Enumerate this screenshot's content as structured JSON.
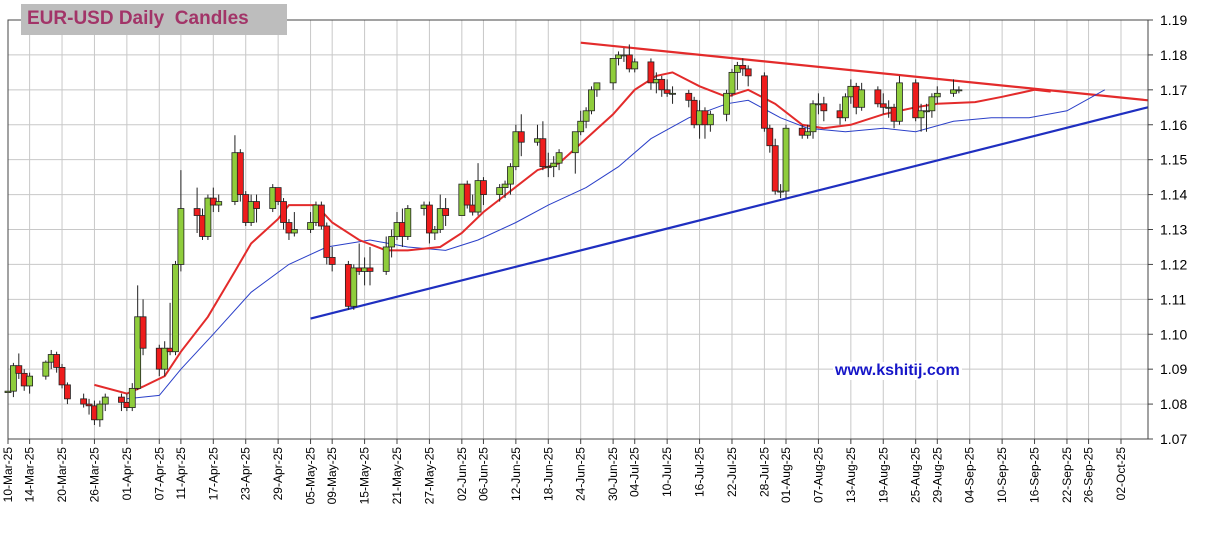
{
  "chart_data": {
    "type": "candlestick",
    "title": "EUR-USD Daily  Candles",
    "watermark": "www.kshitij.com",
    "ylim": [
      1.07,
      1.19
    ],
    "yticks": [
      "1.07",
      "1.08",
      "1.09",
      "1.10",
      "1.11",
      "1.12",
      "1.13",
      "1.14",
      "1.15",
      "1.16",
      "1.17",
      "1.18",
      "1.19"
    ],
    "grid": true,
    "axis_side": "right",
    "x_start": "2025-03-10",
    "x_end": "2025-10-07",
    "xticks": [
      "10-Mar-25",
      "14-Mar-25",
      "20-Mar-25",
      "26-Mar-25",
      "01-Apr-25",
      "07-Apr-25",
      "11-Apr-25",
      "17-Apr-25",
      "23-Apr-25",
      "29-Apr-25",
      "05-May-25",
      "09-May-25",
      "15-May-25",
      "21-May-25",
      "27-May-25",
      "02-Jun-25",
      "06-Jun-25",
      "12-Jun-25",
      "18-Jun-25",
      "24-Jun-25",
      "30-Jun-25",
      "04-Jul-25",
      "10-Jul-25",
      "16-Jul-25",
      "22-Jul-25",
      "28-Jul-25",
      "01-Aug-25",
      "07-Aug-25",
      "13-Aug-25",
      "19-Aug-25",
      "25-Aug-25",
      "29-Aug-25",
      "04-Sep-25",
      "10-Sep-25",
      "16-Sep-25",
      "22-Sep-25",
      "26-Sep-25",
      "02-Oct-25"
    ],
    "colors": {
      "up": "#8fcd3c",
      "down": "#ee1c1c",
      "ma_fast": "#e32b2b",
      "ma_slow": "#2a3fc8",
      "resistance": "#e32b2b",
      "support": "#1f2fc0"
    },
    "candles": [
      [
        "2025-03-10",
        1.0833,
        1.0844,
        1.08,
        1.0837
      ],
      [
        "2025-03-11",
        1.0837,
        1.0918,
        1.082,
        1.091
      ],
      [
        "2025-03-12",
        1.091,
        1.0945,
        1.0872,
        1.0888
      ],
      [
        "2025-03-13",
        1.0888,
        1.09,
        1.0838,
        1.0852
      ],
      [
        "2025-03-14",
        1.0852,
        1.089,
        1.083,
        1.088
      ],
      [
        "2025-03-17",
        1.088,
        1.0925,
        1.087,
        1.092
      ],
      [
        "2025-03-18",
        1.092,
        1.0955,
        1.09,
        1.0942
      ],
      [
        "2025-03-19",
        1.0942,
        1.095,
        1.089,
        1.0905
      ],
      [
        "2025-03-20",
        1.0905,
        1.0915,
        1.0845,
        1.0855
      ],
      [
        "2025-03-21",
        1.0855,
        1.0862,
        1.08,
        1.0815
      ],
      [
        "2025-03-24",
        1.0815,
        1.083,
        1.079,
        1.08
      ],
      [
        "2025-03-25",
        1.08,
        1.0815,
        1.077,
        1.0795
      ],
      [
        "2025-03-26",
        1.0795,
        1.081,
        1.074,
        1.0755
      ],
      [
        "2025-03-27",
        1.0755,
        1.081,
        1.0735,
        1.08
      ],
      [
        "2025-03-28",
        1.08,
        1.083,
        1.078,
        1.082
      ],
      [
        "2025-03-31",
        1.082,
        1.083,
        1.078,
        1.0805
      ],
      [
        "2025-04-01",
        1.0805,
        1.083,
        1.078,
        1.079
      ],
      [
        "2025-04-02",
        1.079,
        1.086,
        1.078,
        1.0845
      ],
      [
        "2025-04-03",
        1.0845,
        1.114,
        1.084,
        1.105
      ],
      [
        "2025-04-04",
        1.105,
        1.11,
        1.094,
        1.096
      ],
      [
        "2025-04-07",
        1.096,
        1.097,
        1.088,
        1.09
      ],
      [
        "2025-04-08",
        1.09,
        1.098,
        1.088,
        1.096
      ],
      [
        "2025-04-09",
        1.096,
        1.109,
        1.094,
        1.095
      ],
      [
        "2025-04-10",
        1.095,
        1.121,
        1.094,
        1.12
      ],
      [
        "2025-04-11",
        1.12,
        1.147,
        1.118,
        1.136
      ],
      [
        "2025-04-14",
        1.136,
        1.142,
        1.129,
        1.134
      ],
      [
        "2025-04-15",
        1.134,
        1.136,
        1.127,
        1.128
      ],
      [
        "2025-04-16",
        1.128,
        1.14,
        1.127,
        1.139
      ],
      [
        "2025-04-17",
        1.139,
        1.142,
        1.135,
        1.137
      ],
      [
        "2025-04-18",
        1.137,
        1.14,
        1.135,
        1.138
      ],
      [
        "2025-04-21",
        1.138,
        1.157,
        1.137,
        1.152
      ],
      [
        "2025-04-22",
        1.152,
        1.153,
        1.138,
        1.14
      ],
      [
        "2025-04-23",
        1.14,
        1.141,
        1.131,
        1.132
      ],
      [
        "2025-04-24",
        1.132,
        1.14,
        1.131,
        1.138
      ],
      [
        "2025-04-25",
        1.138,
        1.14,
        1.132,
        1.136
      ],
      [
        "2025-04-28",
        1.136,
        1.143,
        1.135,
        1.142
      ],
      [
        "2025-04-29",
        1.142,
        1.142,
        1.137,
        1.138
      ],
      [
        "2025-04-30",
        1.138,
        1.139,
        1.13,
        1.132
      ],
      [
        "2025-05-01",
        1.132,
        1.133,
        1.127,
        1.129
      ],
      [
        "2025-05-02",
        1.129,
        1.135,
        1.128,
        1.13
      ],
      [
        "2025-05-05",
        1.13,
        1.135,
        1.129,
        1.132
      ],
      [
        "2025-05-06",
        1.132,
        1.138,
        1.131,
        1.137
      ],
      [
        "2025-05-07",
        1.137,
        1.138,
        1.13,
        1.131
      ],
      [
        "2025-05-08",
        1.131,
        1.132,
        1.12,
        1.122
      ],
      [
        "2025-05-09",
        1.122,
        1.125,
        1.118,
        1.12
      ],
      [
        "2025-05-12",
        1.12,
        1.121,
        1.107,
        1.108
      ],
      [
        "2025-05-13",
        1.108,
        1.12,
        1.107,
        1.119
      ],
      [
        "2025-05-14",
        1.119,
        1.126,
        1.117,
        1.118
      ],
      [
        "2025-05-15",
        1.118,
        1.122,
        1.114,
        1.119
      ],
      [
        "2025-05-16",
        1.119,
        1.125,
        1.114,
        1.118
      ],
      [
        "2025-05-19",
        1.118,
        1.128,
        1.117,
        1.125
      ],
      [
        "2025-05-20",
        1.125,
        1.13,
        1.122,
        1.128
      ],
      [
        "2025-05-21",
        1.128,
        1.135,
        1.127,
        1.132
      ],
      [
        "2025-05-22",
        1.132,
        1.136,
        1.125,
        1.128
      ],
      [
        "2025-05-23",
        1.128,
        1.137,
        1.127,
        1.136
      ],
      [
        "2025-05-26",
        1.136,
        1.138,
        1.134,
        1.137
      ],
      [
        "2025-05-27",
        1.137,
        1.138,
        1.126,
        1.129
      ],
      [
        "2025-05-28",
        1.129,
        1.131,
        1.127,
        1.13
      ],
      [
        "2025-05-29",
        1.13,
        1.14,
        1.129,
        1.136
      ],
      [
        "2025-05-30",
        1.136,
        1.139,
        1.131,
        1.134
      ],
      [
        "2025-06-02",
        1.134,
        1.143,
        1.134,
        1.143
      ],
      [
        "2025-06-03",
        1.143,
        1.144,
        1.136,
        1.137
      ],
      [
        "2025-06-04",
        1.137,
        1.14,
        1.134,
        1.135
      ],
      [
        "2025-06-05",
        1.135,
        1.149,
        1.134,
        1.144
      ],
      [
        "2025-06-06",
        1.144,
        1.145,
        1.137,
        1.14
      ],
      [
        "2025-06-09",
        1.14,
        1.143,
        1.138,
        1.142
      ],
      [
        "2025-06-10",
        1.142,
        1.144,
        1.139,
        1.143
      ],
      [
        "2025-06-11",
        1.143,
        1.149,
        1.14,
        1.148
      ],
      [
        "2025-06-12",
        1.148,
        1.16,
        1.147,
        1.158
      ],
      [
        "2025-06-13",
        1.158,
        1.163,
        1.151,
        1.155
      ],
      [
        "2025-06-16",
        1.155,
        1.16,
        1.154,
        1.156
      ],
      [
        "2025-06-17",
        1.156,
        1.161,
        1.147,
        1.148
      ],
      [
        "2025-06-18",
        1.148,
        1.152,
        1.145,
        1.148
      ],
      [
        "2025-06-19",
        1.148,
        1.151,
        1.145,
        1.149
      ],
      [
        "2025-06-20",
        1.149,
        1.153,
        1.147,
        1.152
      ],
      [
        "2025-06-23",
        1.152,
        1.158,
        1.146,
        1.158
      ],
      [
        "2025-06-24",
        1.158,
        1.164,
        1.157,
        1.161
      ],
      [
        "2025-06-25",
        1.161,
        1.165,
        1.159,
        1.164
      ],
      [
        "2025-06-26",
        1.164,
        1.171,
        1.163,
        1.17
      ],
      [
        "2025-06-27",
        1.17,
        1.172,
        1.168,
        1.172
      ],
      [
        "2025-06-30",
        1.172,
        1.179,
        1.17,
        1.179
      ],
      [
        "2025-07-01",
        1.179,
        1.181,
        1.177,
        1.18
      ],
      [
        "2025-07-02",
        1.18,
        1.182,
        1.178,
        1.18
      ],
      [
        "2025-07-03",
        1.18,
        1.183,
        1.175,
        1.176
      ],
      [
        "2025-07-04",
        1.176,
        1.179,
        1.175,
        1.178
      ],
      [
        "2025-07-07",
        1.178,
        1.179,
        1.17,
        1.172
      ],
      [
        "2025-07-08",
        1.172,
        1.175,
        1.169,
        1.173
      ],
      [
        "2025-07-09",
        1.173,
        1.174,
        1.168,
        1.17
      ],
      [
        "2025-07-10",
        1.17,
        1.173,
        1.168,
        1.169
      ],
      [
        "2025-07-11",
        1.169,
        1.171,
        1.166,
        1.169
      ],
      [
        "2025-07-14",
        1.169,
        1.17,
        1.165,
        1.167
      ],
      [
        "2025-07-15",
        1.167,
        1.168,
        1.159,
        1.16
      ],
      [
        "2025-07-16",
        1.16,
        1.167,
        1.156,
        1.164
      ],
      [
        "2025-07-17",
        1.164,
        1.165,
        1.156,
        1.16
      ],
      [
        "2025-07-18",
        1.16,
        1.164,
        1.158,
        1.163
      ],
      [
        "2025-07-21",
        1.163,
        1.17,
        1.161,
        1.169
      ],
      [
        "2025-07-22",
        1.169,
        1.176,
        1.168,
        1.175
      ],
      [
        "2025-07-23",
        1.175,
        1.178,
        1.17,
        1.177
      ],
      [
        "2025-07-24",
        1.177,
        1.179,
        1.174,
        1.176
      ],
      [
        "2025-07-25",
        1.176,
        1.177,
        1.171,
        1.174
      ],
      [
        "2025-07-28",
        1.174,
        1.175,
        1.158,
        1.159
      ],
      [
        "2025-07-29",
        1.159,
        1.16,
        1.152,
        1.154
      ],
      [
        "2025-07-30",
        1.154,
        1.156,
        1.14,
        1.141
      ],
      [
        "2025-07-31",
        1.141,
        1.143,
        1.139,
        1.141
      ],
      [
        "2025-08-01",
        1.141,
        1.16,
        1.139,
        1.159
      ],
      [
        "2025-08-04",
        1.159,
        1.16,
        1.156,
        1.157
      ],
      [
        "2025-08-05",
        1.157,
        1.16,
        1.156,
        1.158
      ],
      [
        "2025-08-06",
        1.158,
        1.167,
        1.156,
        1.166
      ],
      [
        "2025-08-07",
        1.166,
        1.169,
        1.163,
        1.166
      ],
      [
        "2025-08-08",
        1.166,
        1.168,
        1.161,
        1.164
      ],
      [
        "2025-08-11",
        1.164,
        1.166,
        1.16,
        1.162
      ],
      [
        "2025-08-12",
        1.162,
        1.169,
        1.161,
        1.168
      ],
      [
        "2025-08-13",
        1.168,
        1.173,
        1.166,
        1.171
      ],
      [
        "2025-08-14",
        1.171,
        1.172,
        1.163,
        1.165
      ],
      [
        "2025-08-15",
        1.165,
        1.172,
        1.164,
        1.17
      ],
      [
        "2025-08-18",
        1.17,
        1.171,
        1.165,
        1.166
      ],
      [
        "2025-08-19",
        1.166,
        1.169,
        1.163,
        1.165
      ],
      [
        "2025-08-20",
        1.165,
        1.167,
        1.162,
        1.165
      ],
      [
        "2025-08-21",
        1.165,
        1.166,
        1.159,
        1.161
      ],
      [
        "2025-08-22",
        1.161,
        1.174,
        1.16,
        1.172
      ],
      [
        "2025-08-25",
        1.172,
        1.173,
        1.161,
        1.162
      ],
      [
        "2025-08-26",
        1.162,
        1.166,
        1.158,
        1.164
      ],
      [
        "2025-08-27",
        1.164,
        1.166,
        1.158,
        1.164
      ],
      [
        "2025-08-28",
        1.164,
        1.169,
        1.162,
        1.168
      ],
      [
        "2025-08-29",
        1.168,
        1.171,
        1.166,
        1.169
      ],
      [
        "2025-09-01",
        1.169,
        1.173,
        1.168,
        1.17
      ],
      [
        "2025-09-02",
        1.17,
        1.171,
        1.169,
        1.17
      ]
    ],
    "ma_fast": [
      [
        "2025-03-26",
        1.0855
      ],
      [
        "2025-04-01",
        1.083
      ],
      [
        "2025-04-04",
        1.085
      ],
      [
        "2025-04-08",
        1.088
      ],
      [
        "2025-04-11",
        1.095
      ],
      [
        "2025-04-16",
        1.105
      ],
      [
        "2025-04-21",
        1.118
      ],
      [
        "2025-04-24",
        1.126
      ],
      [
        "2025-04-29",
        1.133
      ],
      [
        "2025-05-01",
        1.137
      ],
      [
        "2025-05-06",
        1.137
      ],
      [
        "2025-05-09",
        1.132
      ],
      [
        "2025-05-14",
        1.127
      ],
      [
        "2025-05-19",
        1.124
      ],
      [
        "2025-05-23",
        1.124
      ],
      [
        "2025-05-29",
        1.125
      ],
      [
        "2025-06-02",
        1.129
      ],
      [
        "2025-06-06",
        1.135
      ],
      [
        "2025-06-11",
        1.141
      ],
      [
        "2025-06-16",
        1.147
      ],
      [
        "2025-06-20",
        1.149
      ],
      [
        "2025-06-25",
        1.156
      ],
      [
        "2025-06-30",
        1.163
      ],
      [
        "2025-07-04",
        1.17
      ],
      [
        "2025-07-08",
        1.174
      ],
      [
        "2025-07-11",
        1.175
      ],
      [
        "2025-07-16",
        1.171
      ],
      [
        "2025-07-21",
        1.168
      ],
      [
        "2025-07-25",
        1.17
      ],
      [
        "2025-07-30",
        1.166
      ],
      [
        "2025-08-04",
        1.16
      ],
      [
        "2025-08-08",
        1.159
      ],
      [
        "2025-08-13",
        1.16
      ],
      [
        "2025-08-19",
        1.163
      ],
      [
        "2025-08-25",
        1.165
      ],
      [
        "2025-08-29",
        1.166
      ],
      [
        "2025-09-05",
        1.1665
      ],
      [
        "2025-09-10",
        1.168
      ],
      [
        "2025-09-16",
        1.17
      ],
      [
        "2025-09-19",
        1.1695
      ]
    ],
    "ma_slow": [
      [
        "2025-04-01",
        1.0815
      ],
      [
        "2025-04-07",
        1.0825
      ],
      [
        "2025-04-11",
        1.09
      ],
      [
        "2025-04-17",
        1.1
      ],
      [
        "2025-04-24",
        1.112
      ],
      [
        "2025-05-01",
        1.12
      ],
      [
        "2025-05-08",
        1.125
      ],
      [
        "2025-05-16",
        1.127
      ],
      [
        "2025-05-23",
        1.125
      ],
      [
        "2025-05-30",
        1.124
      ],
      [
        "2025-06-05",
        1.127
      ],
      [
        "2025-06-12",
        1.132
      ],
      [
        "2025-06-18",
        1.137
      ],
      [
        "2025-06-25",
        1.142
      ],
      [
        "2025-07-01",
        1.148
      ],
      [
        "2025-07-07",
        1.156
      ],
      [
        "2025-07-14",
        1.162
      ],
      [
        "2025-07-21",
        1.166
      ],
      [
        "2025-07-25",
        1.167
      ],
      [
        "2025-07-31",
        1.162
      ],
      [
        "2025-08-05",
        1.159
      ],
      [
        "2025-08-12",
        1.158
      ],
      [
        "2025-08-19",
        1.159
      ],
      [
        "2025-08-25",
        1.158
      ],
      [
        "2025-09-01",
        1.161
      ],
      [
        "2025-09-08",
        1.162
      ],
      [
        "2025-09-15",
        1.162
      ],
      [
        "2025-09-22",
        1.164
      ],
      [
        "2025-09-29",
        1.17
      ]
    ],
    "trendlines": [
      {
        "kind": "resistance",
        "from": [
          "2025-06-24",
          1.1835
        ],
        "to": [
          "2025-10-07",
          1.167
        ]
      },
      {
        "kind": "support",
        "from": [
          "2025-05-05",
          1.1045
        ],
        "to": [
          "2025-10-07",
          1.165
        ]
      }
    ]
  }
}
